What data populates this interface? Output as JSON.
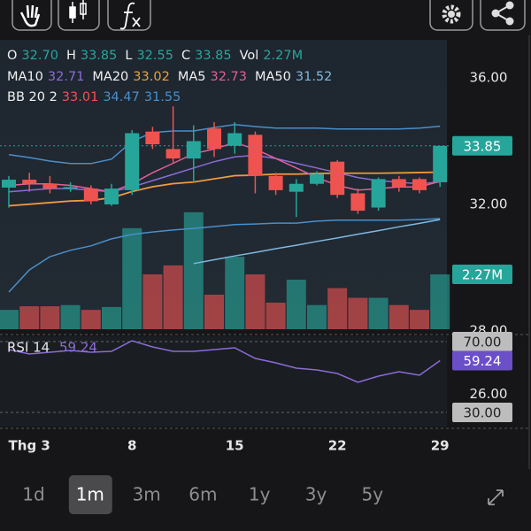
{
  "chart_data": {
    "type": "candlestick",
    "categories": [
      null,
      "Thg 3",
      null,
      null,
      null,
      null,
      "8",
      null,
      null,
      null,
      null,
      "15",
      null,
      null,
      null,
      null,
      "22",
      null,
      null,
      null,
      null,
      "29"
    ],
    "candles": {
      "open": [
        32.53,
        32.78,
        32.65,
        32.5,
        32.5,
        32.0,
        32.45,
        34.3,
        33.75,
        33.45,
        34.4,
        33.85,
        34.2,
        32.9,
        32.4,
        32.65,
        33.35,
        32.35,
        31.9,
        32.8,
        32.8,
        32.7
      ],
      "high": [
        32.9,
        33.0,
        32.9,
        32.7,
        32.6,
        32.65,
        34.35,
        34.45,
        35.1,
        34.5,
        34.6,
        34.6,
        34.3,
        33.0,
        32.8,
        33.05,
        33.4,
        32.5,
        32.85,
        32.9,
        32.85,
        33.85
      ],
      "low": [
        31.9,
        32.4,
        32.35,
        32.4,
        32.0,
        31.95,
        32.3,
        33.75,
        33.3,
        32.7,
        33.5,
        33.6,
        32.35,
        32.3,
        31.6,
        32.6,
        32.2,
        31.7,
        31.8,
        32.4,
        32.35,
        32.55
      ],
      "close": [
        32.78,
        32.65,
        32.5,
        32.55,
        32.1,
        32.5,
        34.25,
        33.9,
        33.45,
        34.0,
        33.75,
        34.25,
        32.9,
        32.45,
        32.65,
        32.95,
        32.3,
        31.8,
        32.8,
        32.55,
        32.45,
        33.85
      ],
      "volume": [
        0.8,
        0.95,
        0.95,
        1.0,
        0.8,
        0.92,
        4.18,
        2.27,
        2.64,
        4.84,
        1.43,
        3.0,
        2.27,
        1.1,
        2.05,
        1.0,
        1.7,
        1.3,
        1.3,
        1.0,
        0.8,
        2.27
      ]
    },
    "up_color": "#26a69a",
    "down_color": "#ef5350",
    "header_labels": {
      "open": "O",
      "high": "H",
      "low": "L",
      "close": "C",
      "volume": "Vol"
    },
    "last_labels": {
      "open": "32.70",
      "high": "33.85",
      "low": "32.55",
      "close": "33.85",
      "volume": "2.27M"
    },
    "series": [
      {
        "name": "MA10",
        "color": "#8b6cd8",
        "value_label": "32.71",
        "values": [
          32.4,
          32.45,
          32.5,
          32.5,
          32.45,
          32.4,
          32.55,
          32.75,
          32.95,
          33.15,
          33.35,
          33.5,
          33.55,
          33.45,
          33.3,
          33.15,
          33.0,
          32.85,
          32.75,
          32.7,
          32.65,
          32.71
        ]
      },
      {
        "name": "MA20",
        "color": "#e8a33a",
        "value_label": "33.02",
        "values": [
          31.96,
          32.01,
          32.06,
          32.11,
          32.13,
          32.21,
          32.41,
          32.56,
          32.66,
          32.71,
          32.81,
          32.91,
          32.93,
          32.96,
          32.96,
          32.98,
          32.99,
          32.99,
          32.99,
          33.0,
          33.01,
          33.02
        ]
      },
      {
        "name": "MA5",
        "color": "#e0609a",
        "value_label": "32.73",
        "values": [
          32.6,
          32.65,
          32.65,
          32.6,
          32.5,
          32.4,
          32.65,
          33.0,
          33.3,
          33.6,
          33.75,
          33.95,
          33.75,
          33.45,
          33.15,
          32.85,
          32.6,
          32.45,
          32.5,
          32.55,
          32.55,
          32.73
        ]
      },
      {
        "name": "MA50",
        "color": "#7fb8e0",
        "value_label": "31.52",
        "values": [
          null,
          null,
          null,
          null,
          null,
          null,
          null,
          null,
          null,
          30.13,
          30.25,
          30.37,
          30.48,
          30.6,
          30.71,
          30.83,
          30.94,
          31.06,
          31.17,
          31.29,
          31.4,
          31.52
        ]
      }
    ],
    "bollinger": {
      "name": "BB 20 2",
      "series": [
        {
          "color": "#ef5350",
          "value_label": "33.01",
          "values": [
            31.95,
            32.0,
            32.05,
            32.1,
            32.12,
            32.2,
            32.4,
            32.55,
            32.65,
            32.7,
            32.8,
            32.9,
            32.92,
            32.95,
            32.95,
            32.97,
            32.98,
            32.98,
            32.98,
            32.99,
            33.0,
            33.01
          ]
        },
        {
          "color": "#4a8fc9",
          "value_label": "34.47",
          "values": [
            33.57,
            33.48,
            33.37,
            33.29,
            33.29,
            33.43,
            33.99,
            34.27,
            34.32,
            34.32,
            34.43,
            34.52,
            34.46,
            34.41,
            34.41,
            34.41,
            34.38,
            34.38,
            34.38,
            34.38,
            34.41,
            34.47
          ]
        },
        {
          "color": "#4a8fc9",
          "value_label": "31.55",
          "values": [
            29.23,
            29.93,
            30.35,
            30.55,
            30.69,
            30.91,
            31.05,
            31.13,
            31.19,
            31.24,
            31.3,
            31.36,
            31.38,
            31.41,
            31.41,
            31.47,
            31.5,
            31.5,
            31.5,
            31.5,
            31.52,
            31.55
          ]
        }
      ]
    },
    "ylim": [
      28,
      37.2
    ],
    "yticks": [
      {
        "value": 36,
        "label": "36.00"
      },
      {
        "value": 32,
        "label": "32.00"
      },
      {
        "value": 28,
        "label": "28.00"
      },
      {
        "value": 26,
        "label": "26.00"
      }
    ],
    "vlim": [
      0,
      5.2
    ],
    "rsi": {
      "name": "RSI 14",
      "color": "#8b6cd8",
      "value_label": "59.24",
      "ylim": [
        18,
        74
      ],
      "values": [
        65.5,
        63,
        64,
        65,
        64,
        64.5,
        70.5,
        67,
        64.5,
        64.5,
        65.5,
        66.5,
        60.5,
        58,
        55,
        54,
        52,
        47,
        50.5,
        53,
        51,
        59.24
      ],
      "levels": [
        {
          "value": 70,
          "label": "70.00"
        },
        {
          "value": 30,
          "label": "30.00"
        }
      ]
    },
    "timeframes": {
      "options": [
        "1d",
        "1m",
        "3m",
        "6m",
        "1y",
        "3y",
        "5y"
      ],
      "selected": 1
    }
  }
}
